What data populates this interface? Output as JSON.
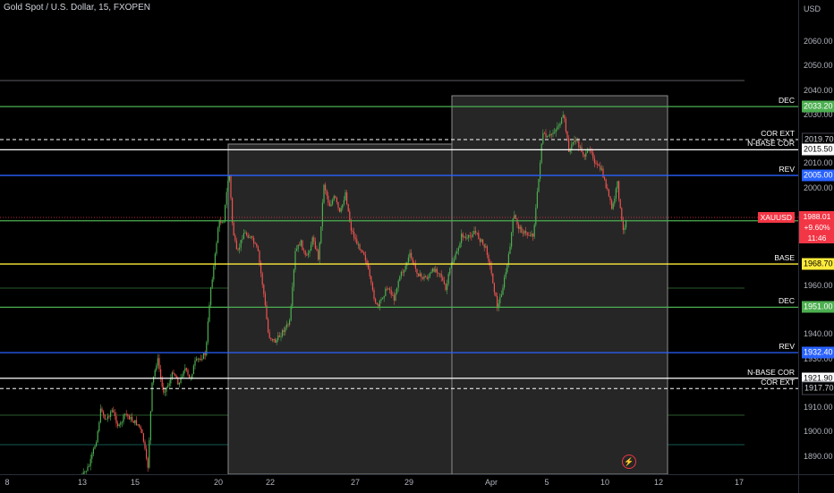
{
  "chart": {
    "title": "Gold Spot / U.S. Dollar, 15, FXOPEN",
    "currency": "USD",
    "y_ticks": [
      "2060.00",
      "2050.00",
      "2040.00",
      "2030.00",
      "2010.00",
      "2000.00",
      "1960.00",
      "1950.00",
      "1940.00",
      "1930.00",
      "1910.00",
      "1900.00",
      "1890.00"
    ],
    "x_ticks": [
      "8",
      "13",
      "15",
      "20",
      "22",
      "27",
      "29",
      "Apr",
      "5",
      "10",
      "12",
      "17"
    ],
    "levels": [
      {
        "label": "DEC",
        "value": "2033.20",
        "color": "#4caf50",
        "tag_bg": "#4caf50",
        "tag_fg": "#ffffff",
        "dashed": false
      },
      {
        "label": "COR EXT",
        "value": "2019.70",
        "color": "#ffffff",
        "tag_bg": "#000000",
        "tag_fg": "#d1d4dc",
        "dashed": true
      },
      {
        "label": "N-BASE COR",
        "value": "2015.50",
        "color": "#ffffff",
        "tag_bg": "#ffffff",
        "tag_fg": "#000000",
        "dashed": false
      },
      {
        "label": "REV",
        "value": "2005.00",
        "color": "#2962ff",
        "tag_bg": "#2962ff",
        "tag_fg": "#ffffff",
        "dashed": false
      },
      {
        "label": "",
        "value": "1986.40",
        "color": "#4caf50",
        "tag_bg": "#4caf50",
        "tag_fg": "#ffffff",
        "dashed": false
      },
      {
        "label": "BASE",
        "value": "1968.70",
        "color": "#ffeb3b",
        "tag_bg": "#ffeb3b",
        "tag_fg": "#000000",
        "dashed": false
      },
      {
        "label": "DEC",
        "value": "1951.00",
        "color": "#4caf50",
        "tag_bg": "#4caf50",
        "tag_fg": "#ffffff",
        "dashed": false
      },
      {
        "label": "REV",
        "value": "1932.40",
        "color": "#2962ff",
        "tag_bg": "#2962ff",
        "tag_fg": "#ffffff",
        "dashed": false
      },
      {
        "label": "N-BASE COR",
        "value": "1921.90",
        "color": "#ffffff",
        "tag_bg": "#ffffff",
        "tag_fg": "#000000",
        "dashed": false
      },
      {
        "label": "COR EXT",
        "value": "1917.70",
        "color": "#ffffff",
        "tag_bg": "#000000",
        "tag_fg": "#d1d4dc",
        "dashed": true
      }
    ],
    "current": {
      "symbol": "XAUUSD",
      "price": "1988.01",
      "change": "+9.60%",
      "countdown": "11:46"
    },
    "colors": {
      "up": "#26a69a",
      "down": "#ef5350",
      "up_candle": "#4caf50"
    }
  }
}
